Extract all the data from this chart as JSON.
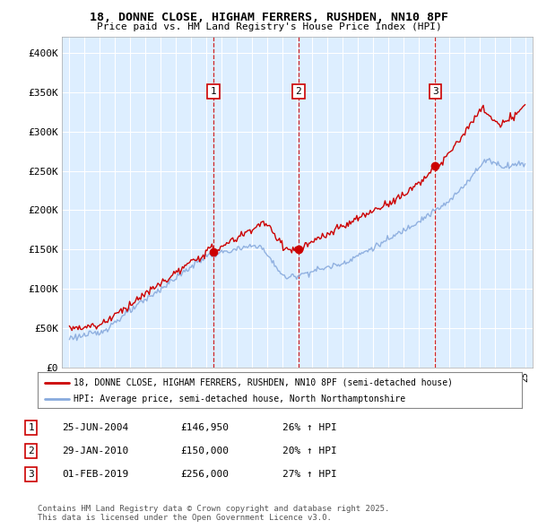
{
  "title1": "18, DONNE CLOSE, HIGHAM FERRERS, RUSHDEN, NN10 8PF",
  "title2": "Price paid vs. HM Land Registry's House Price Index (HPI)",
  "legend_line1": "18, DONNE CLOSE, HIGHAM FERRERS, RUSHDEN, NN10 8PF (semi-detached house)",
  "legend_line2": "HPI: Average price, semi-detached house, North Northamptonshire",
  "footer": "Contains HM Land Registry data © Crown copyright and database right 2025.\nThis data is licensed under the Open Government Licence v3.0.",
  "sale_color": "#cc0000",
  "hpi_color": "#88aadd",
  "background_color": "#ddeeff",
  "grid_color": "#ffffff",
  "sale_points": [
    {
      "date": 2004.48,
      "price": 146950,
      "label": "1"
    },
    {
      "date": 2010.08,
      "price": 150000,
      "label": "2"
    },
    {
      "date": 2019.08,
      "price": 256000,
      "label": "3"
    }
  ],
  "vline_dates": [
    2004.48,
    2010.08,
    2019.08
  ],
  "table_rows": [
    [
      "1",
      "25-JUN-2004",
      "£146,950",
      "26% ↑ HPI"
    ],
    [
      "2",
      "29-JAN-2010",
      "£150,000",
      "20% ↑ HPI"
    ],
    [
      "3",
      "01-FEB-2019",
      "£256,000",
      "27% ↑ HPI"
    ]
  ],
  "ylim": [
    0,
    420000
  ],
  "xlim": [
    1994.5,
    2025.5
  ],
  "yticks": [
    0,
    50000,
    100000,
    150000,
    200000,
    250000,
    300000,
    350000,
    400000
  ],
  "ylabels": [
    "£0",
    "£50K",
    "£100K",
    "£150K",
    "£200K",
    "£250K",
    "£300K",
    "£350K",
    "£400K"
  ]
}
